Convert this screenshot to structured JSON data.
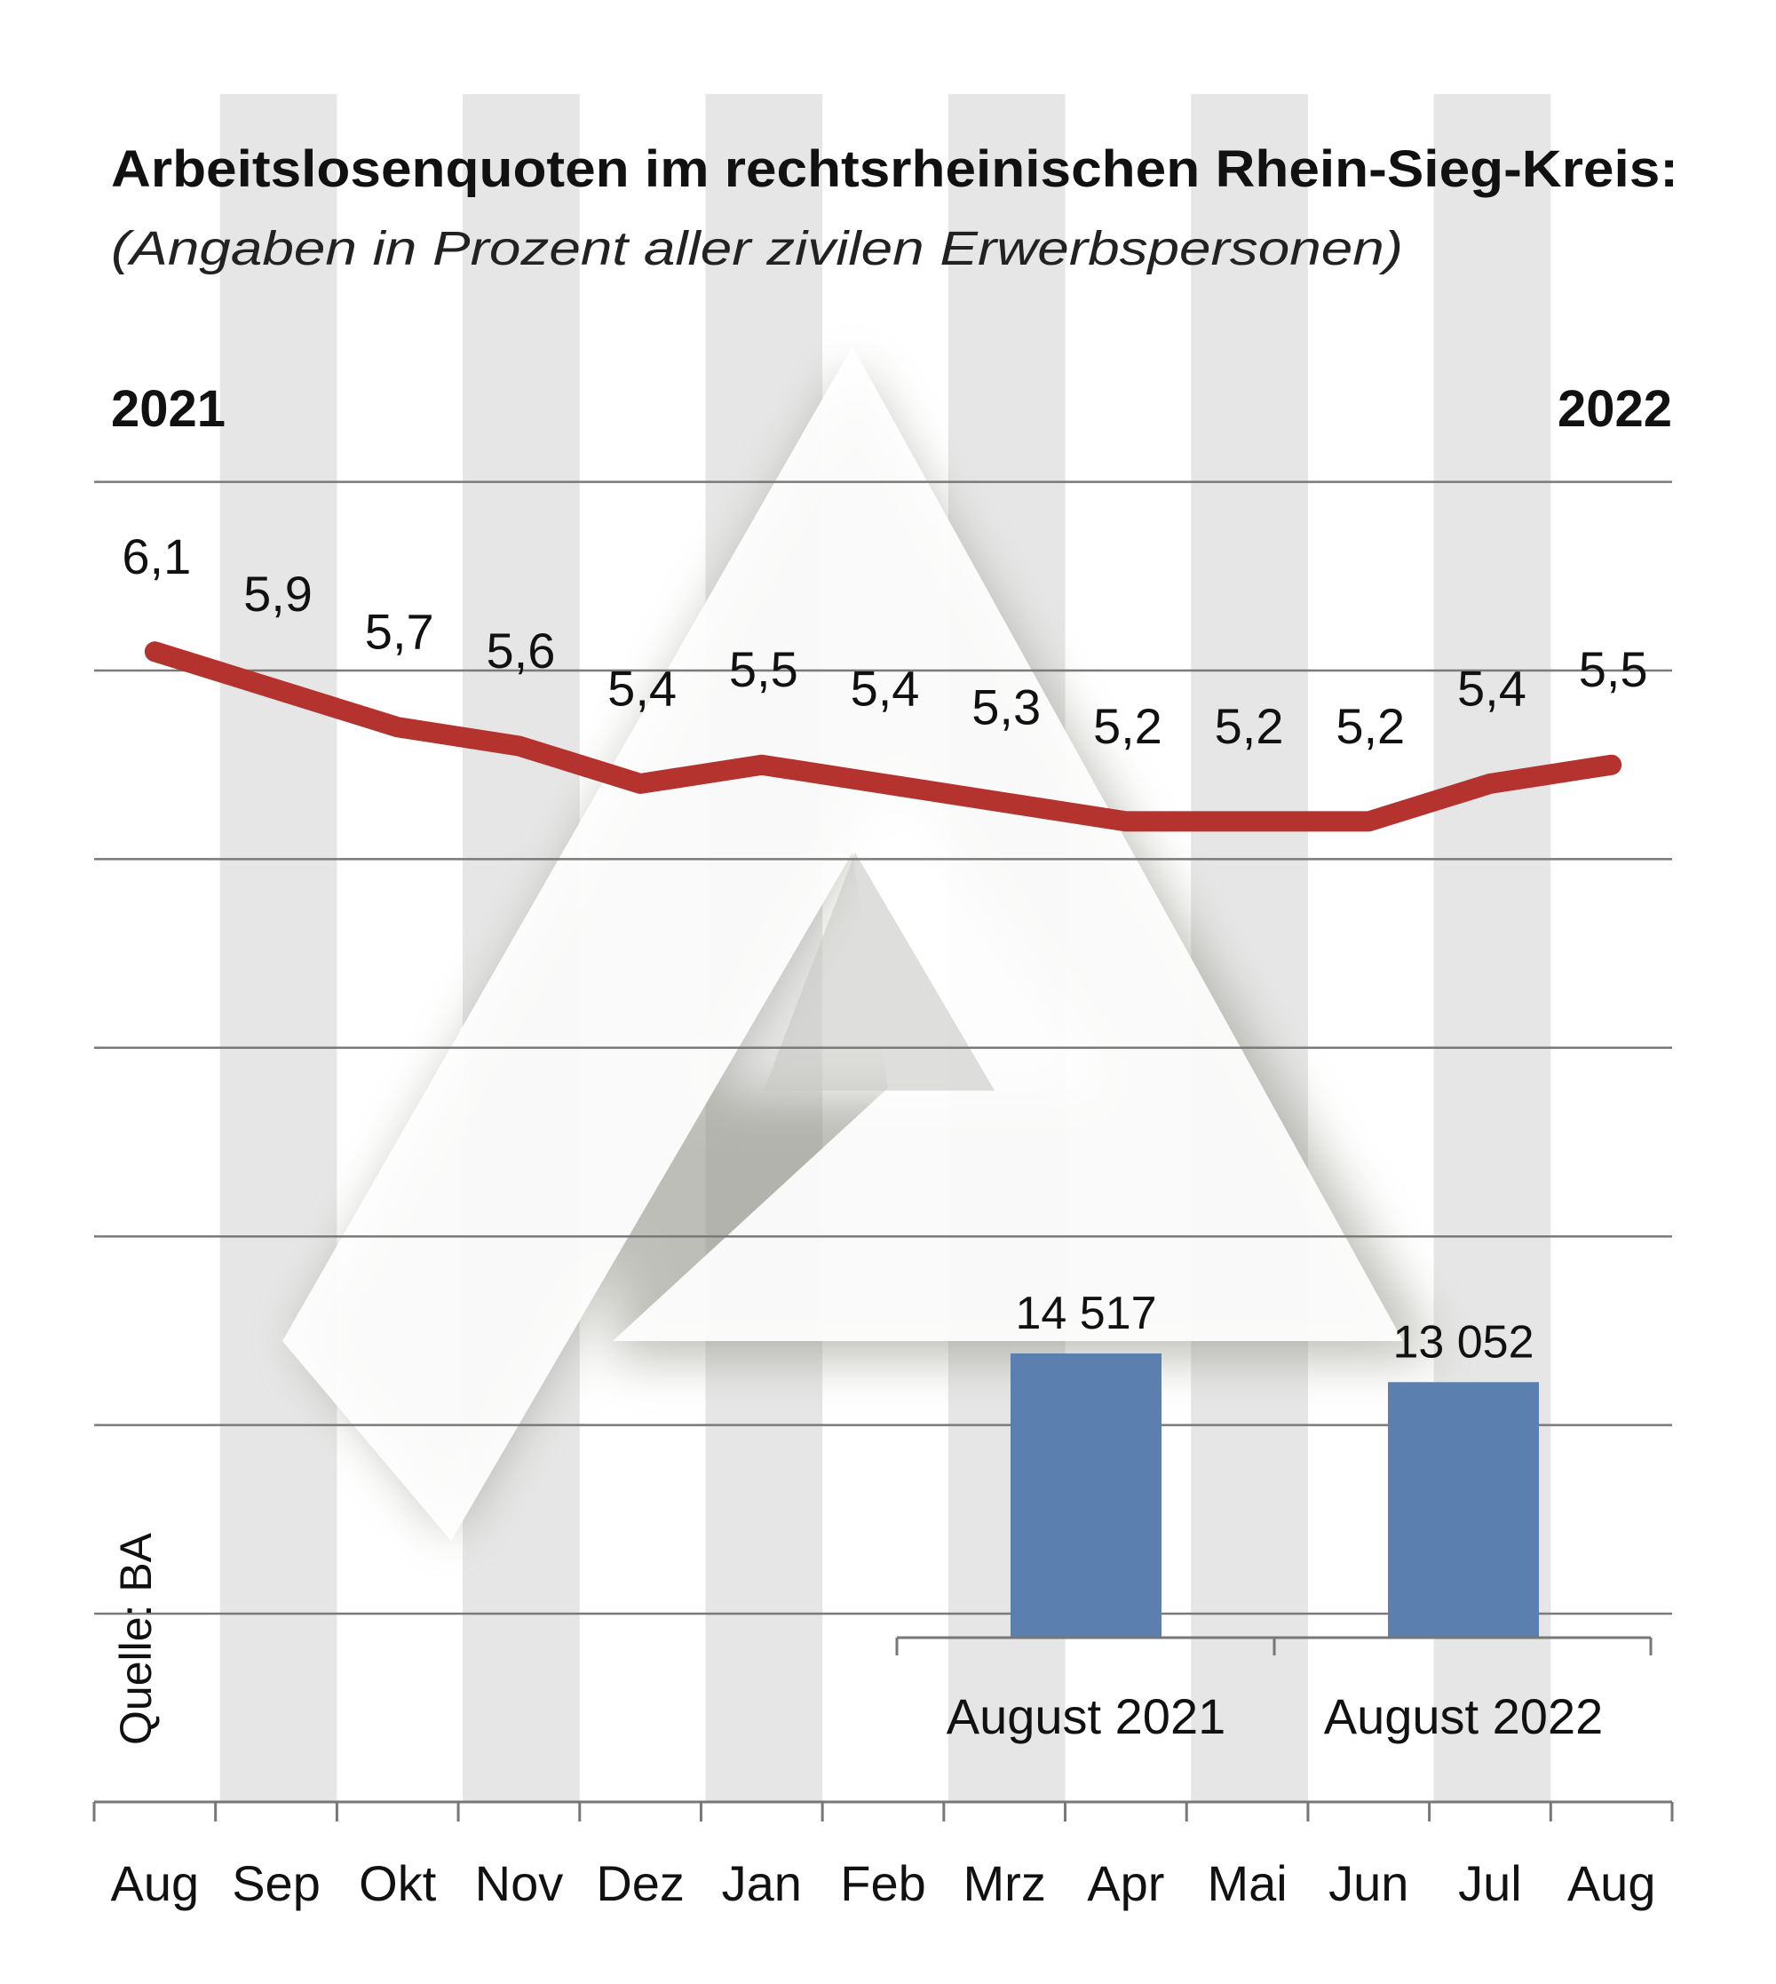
{
  "chart_data": [
    {
      "type": "line",
      "title": "Arbeitslosenquoten im rechtsrheinischen Rhein-Sieg-Kreis:",
      "subtitle": "(Angaben in Prozent aller zivilen Erwerbspersonen)",
      "year_start": "2021",
      "year_end": "2022",
      "categories": [
        "Aug",
        "Sep",
        "Okt",
        "Nov",
        "Dez",
        "Jan",
        "Feb",
        "Mrz",
        "Apr",
        "Mai",
        "Jun",
        "Jul",
        "Aug"
      ],
      "values": [
        6.1,
        5.9,
        5.7,
        5.6,
        5.4,
        5.5,
        5.4,
        5.3,
        5.2,
        5.2,
        5.2,
        5.4,
        5.5
      ],
      "value_labels": [
        "6,1",
        "5,9",
        "5,7",
        "5,6",
        "5,4",
        "5,5",
        "5,4",
        "5,3",
        "5,2",
        "5,2",
        "5,2",
        "5,4",
        "5,5"
      ],
      "ylim": [
        0,
        7
      ],
      "grid": true,
      "color": "#b5332e"
    },
    {
      "type": "bar",
      "categories": [
        "August 2021",
        "August 2022"
      ],
      "values": [
        14517,
        13052
      ],
      "value_labels": [
        "14 517",
        "13 052"
      ],
      "color": "#5b7faf"
    }
  ],
  "source": "Quelle: BA",
  "colors": {
    "stripe": "#e6e6e6",
    "grid": "#7a7a7a"
  }
}
